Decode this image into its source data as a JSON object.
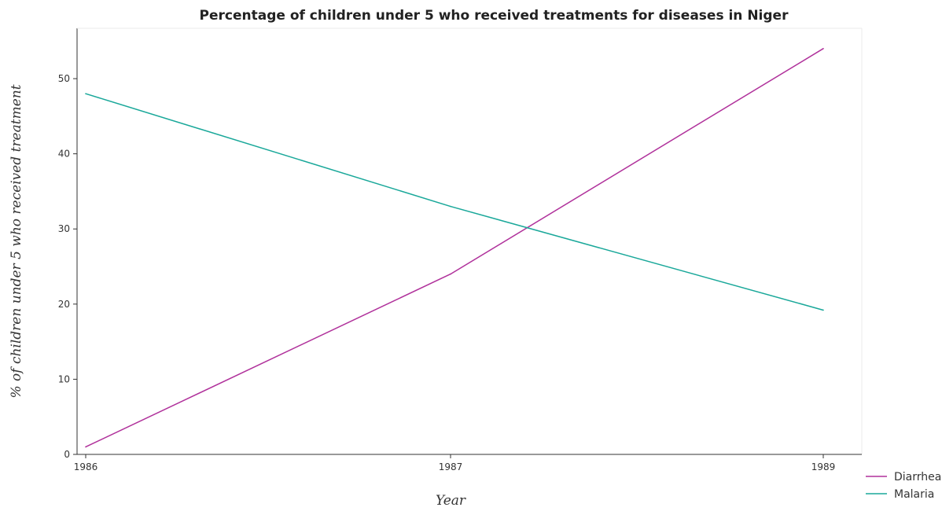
{
  "chart_data": {
    "type": "line",
    "title": "Percentage of children under 5 who received treatments for diseases in Niger",
    "xlabel": "Year",
    "ylabel": "% of children under 5 who received treatment",
    "categories": [
      "1986",
      "1987",
      "1989"
    ],
    "ylim": [
      0,
      56.7
    ],
    "yticks": [
      0,
      10,
      20,
      30,
      40,
      50
    ],
    "grid": false,
    "legend_position": "bottom-right",
    "series": [
      {
        "name": "Diarrhea",
        "color": "#b0319b",
        "values": [
          1,
          24,
          54
        ]
      },
      {
        "name": "Malaria",
        "color": "#1aa89a",
        "values": [
          48,
          33,
          19.2
        ]
      }
    ]
  }
}
